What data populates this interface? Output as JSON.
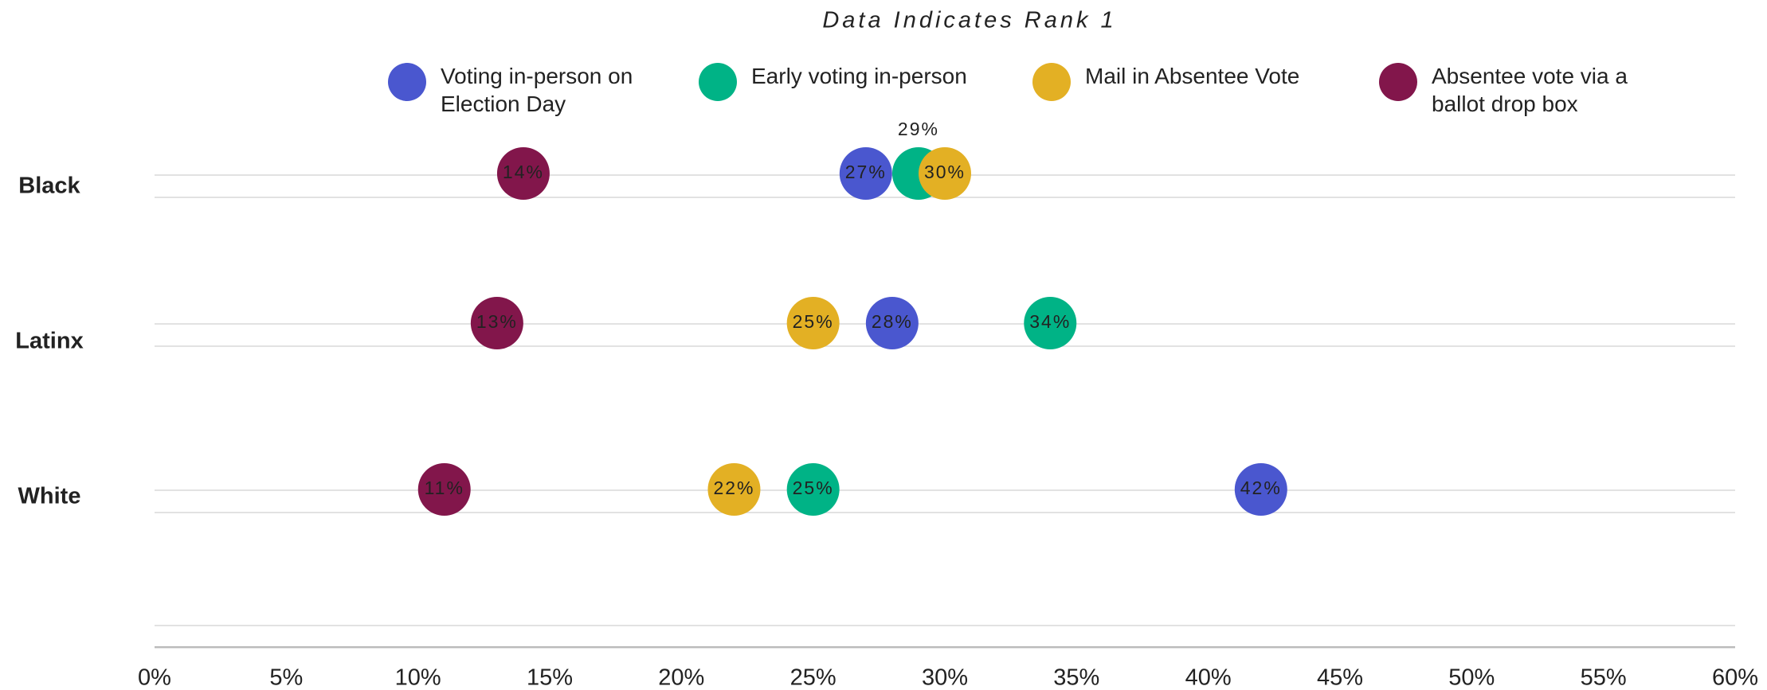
{
  "chart_data": {
    "type": "dot",
    "title": "Data Indicates Rank 1",
    "categories": [
      "Black",
      "Latinx",
      "White"
    ],
    "series": [
      {
        "name": "Voting in-person on Election Day",
        "color": "#4a57cf",
        "values": [
          27,
          28,
          42
        ],
        "value_labels": [
          "27%",
          "28%",
          "42%"
        ]
      },
      {
        "name": "Early voting in-person",
        "color": "#00b386",
        "values": [
          29,
          34,
          25
        ],
        "value_labels": [
          "29%",
          "34%",
          "25%"
        ]
      },
      {
        "name": "Mail in Absentee Vote",
        "color": "#e3b024",
        "values": [
          30,
          25,
          22
        ],
        "value_labels": [
          "30%",
          "25%",
          "22%"
        ]
      },
      {
        "name": "Absentee vote via a ballot drop box",
        "color": "#82164b",
        "values": [
          14,
          13,
          11
        ],
        "value_labels": [
          "14%",
          "13%",
          "11%"
        ]
      }
    ],
    "xlim": [
      0,
      60
    ],
    "xticks": [
      {
        "value": 0,
        "label": "0%"
      },
      {
        "value": 5,
        "label": "5%"
      },
      {
        "value": 10,
        "label": "10%"
      },
      {
        "value": 15,
        "label": "15%"
      },
      {
        "value": 20,
        "label": "20%"
      },
      {
        "value": 25,
        "label": "25%"
      },
      {
        "value": 30,
        "label": "30%"
      },
      {
        "value": 35,
        "label": "35%"
      },
      {
        "value": 40,
        "label": "40%"
      },
      {
        "value": 45,
        "label": "45%"
      },
      {
        "value": 50,
        "label": "50%"
      },
      {
        "value": 55,
        "label": "55%"
      },
      {
        "value": 60,
        "label": "60%"
      }
    ],
    "legend": "top"
  }
}
